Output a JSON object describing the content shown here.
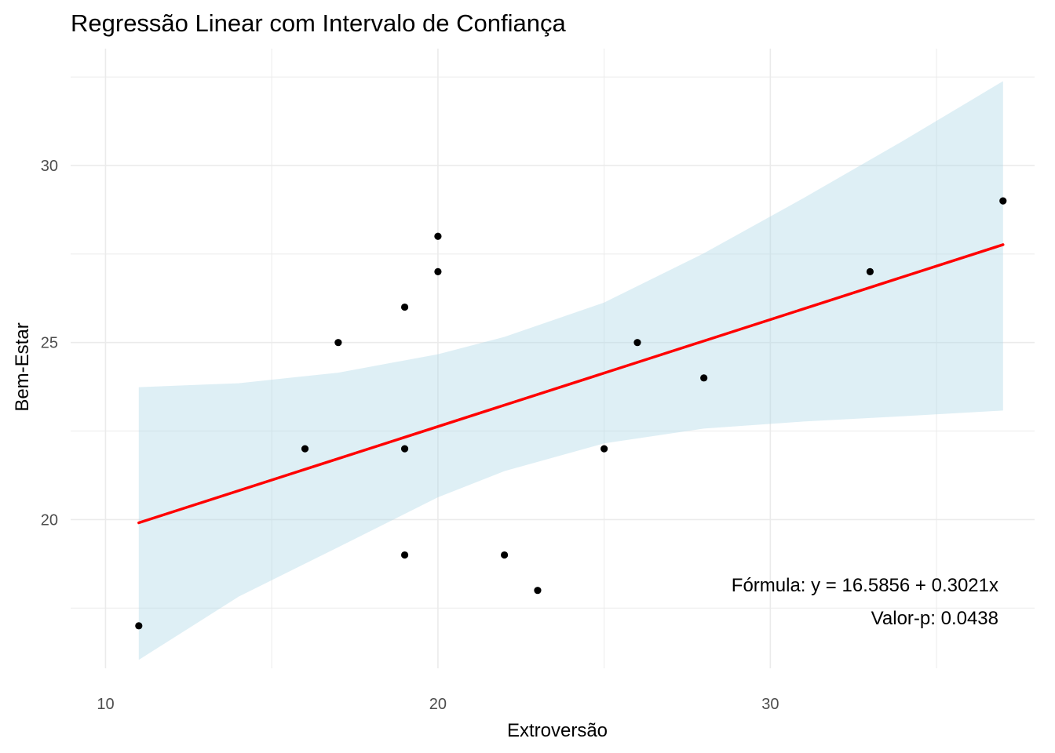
{
  "chart_data": {
    "type": "scatter",
    "title": "Regressão Linear com Intervalo de Confiança",
    "xlabel": "Extroversão",
    "ylabel": "Bem-Estar",
    "xlim": [
      8.95,
      37.95
    ],
    "ylim": [
      15.8,
      33.3
    ],
    "x_ticks": [
      10,
      20,
      30
    ],
    "y_ticks": [
      20,
      25,
      30
    ],
    "x_minor_ticks": [
      15,
      25,
      35
    ],
    "y_minor_ticks": [
      17.5,
      22.5,
      27.5,
      32.5
    ],
    "grid": true,
    "points": [
      {
        "x": 11,
        "y": 17
      },
      {
        "x": 16,
        "y": 22
      },
      {
        "x": 17,
        "y": 25
      },
      {
        "x": 19,
        "y": 26
      },
      {
        "x": 19,
        "y": 22
      },
      {
        "x": 19,
        "y": 19
      },
      {
        "x": 20,
        "y": 28
      },
      {
        "x": 20,
        "y": 27
      },
      {
        "x": 22,
        "y": 19
      },
      {
        "x": 23,
        "y": 18
      },
      {
        "x": 25,
        "y": 22
      },
      {
        "x": 26,
        "y": 25
      },
      {
        "x": 28,
        "y": 24
      },
      {
        "x": 33,
        "y": 27
      },
      {
        "x": 37,
        "y": 29
      }
    ],
    "regression": {
      "intercept": 16.5856,
      "slope": 0.3021,
      "x_range": [
        11,
        37
      ]
    },
    "confidence_band": {
      "x": [
        11,
        14,
        17,
        20,
        22,
        25,
        28,
        31,
        34,
        37
      ],
      "upper": [
        23.74,
        23.85,
        24.15,
        24.67,
        25.16,
        26.13,
        27.52,
        29.08,
        30.7,
        32.38
      ],
      "lower": [
        16.04,
        17.82,
        19.22,
        20.63,
        21.37,
        22.15,
        22.57,
        22.77,
        22.92,
        23.08
      ]
    },
    "colors": {
      "points": "#000000",
      "line": "#ff0000",
      "band": "#add8e6",
      "grid": "#ebebeb"
    },
    "annotations": {
      "formula": "Fórmula: y = 16.5856 + 0.3021x",
      "pvalue": "Valor-p: 0.0438"
    }
  }
}
